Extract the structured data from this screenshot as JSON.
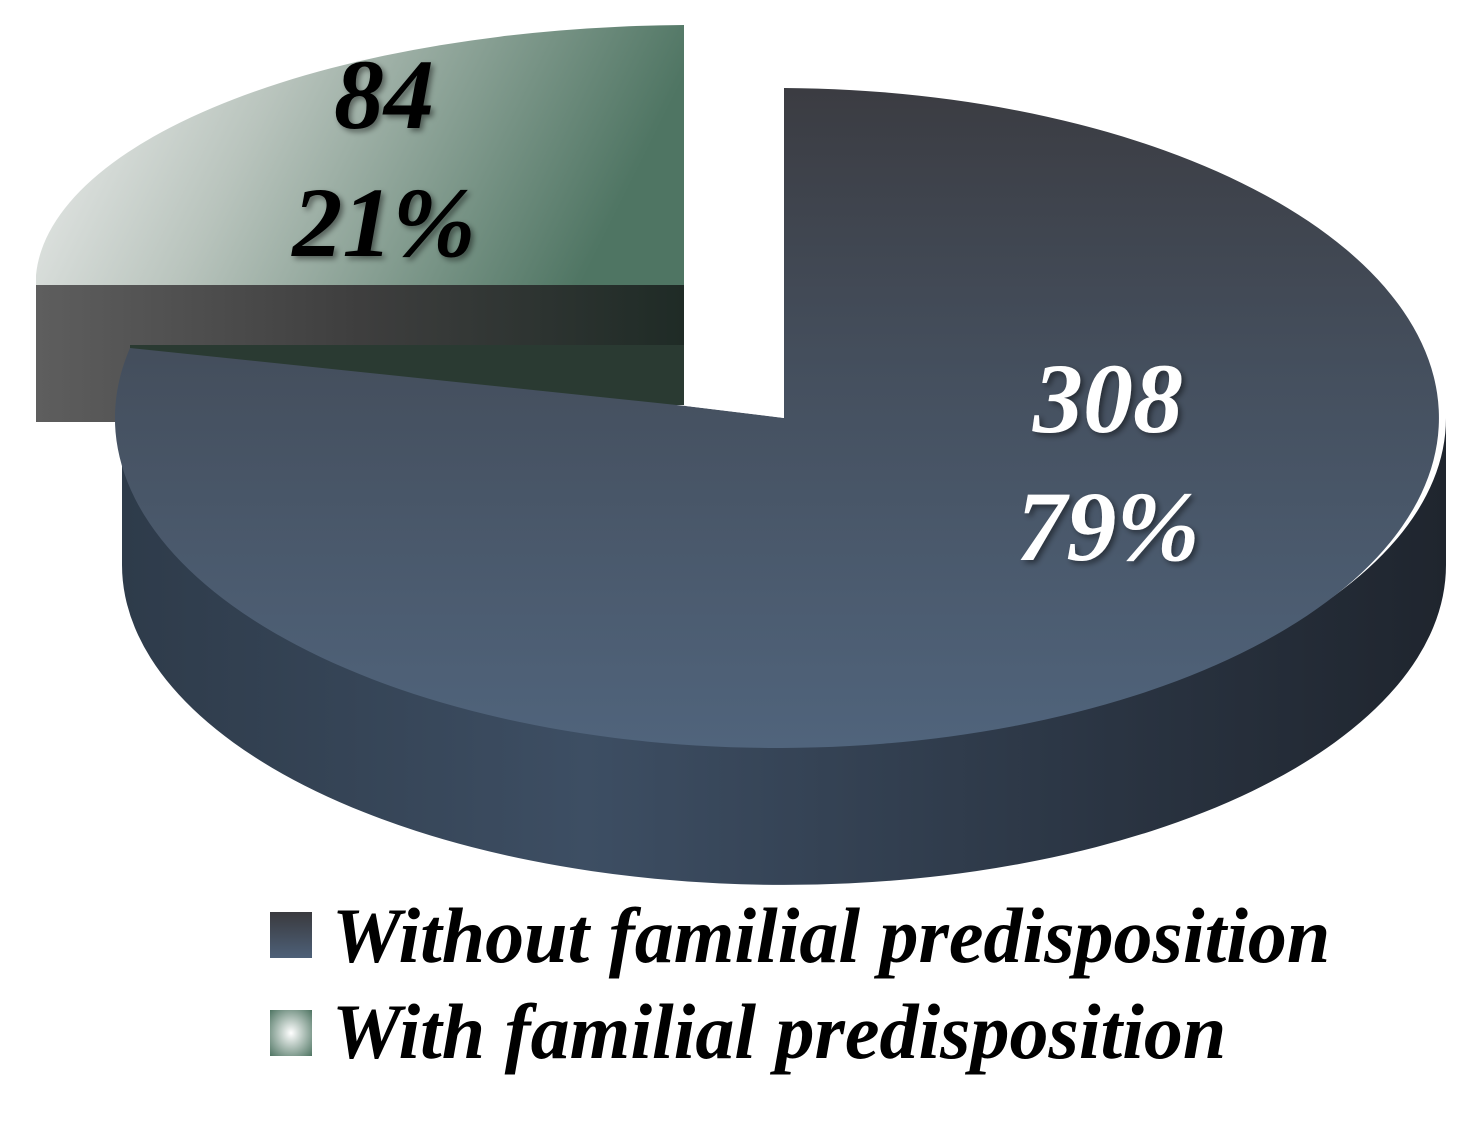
{
  "chart_data": {
    "type": "pie",
    "title": "",
    "legend_placement": "bottom-right",
    "slices": [
      {
        "name": "Without familial predisposition",
        "value": 308,
        "value_label": "308",
        "percent_label": "79%",
        "color": "#4a5d75",
        "label_color": "#ffffff",
        "exploded": false
      },
      {
        "name": "With familial predisposition",
        "value": 84,
        "value_label": "84",
        "percent_label": "21%",
        "color": "#5c7c6c",
        "label_color": "#000000",
        "exploded": true
      }
    ]
  }
}
